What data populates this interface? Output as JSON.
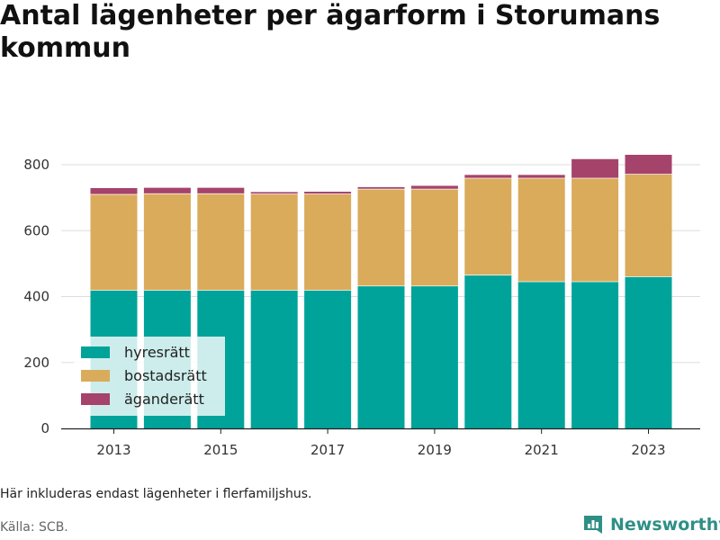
{
  "title": "Antal lägenheter per ägarform i Storumans kommun",
  "note": "Här inkluderas endast lägenheter i flerfamiljshus.",
  "source": "Källa: SCB.",
  "brand": "Newsworthy",
  "colors": {
    "hyresratt": "#00a39a",
    "bostadsratt": "#d9ab5b",
    "aganderatt": "#a5436b",
    "grid": "#dddddd",
    "brand": "#2f8f86"
  },
  "chart_data": {
    "type": "bar",
    "stacked": true,
    "categories": [
      2013,
      2014,
      2015,
      2016,
      2017,
      2018,
      2019,
      2020,
      2021,
      2022,
      2023
    ],
    "series": [
      {
        "name": "hyresrätt",
        "values": [
          420,
          420,
          420,
          420,
          420,
          433,
          433,
          466,
          446,
          446,
          461
        ]
      },
      {
        "name": "bostadsrätt",
        "values": [
          291,
          293,
          293,
          292,
          292,
          294,
          294,
          294,
          314,
          314,
          311
        ]
      },
      {
        "name": "äganderätt",
        "values": [
          18,
          17,
          17,
          5,
          6,
          5,
          9,
          9,
          9,
          57,
          58
        ]
      }
    ],
    "x_tick_labels": [
      "2013",
      "2015",
      "2017",
      "2019",
      "2021",
      "2023"
    ],
    "y_ticks": [
      0,
      200,
      400,
      600,
      800
    ],
    "ylim": [
      0,
      880
    ],
    "grid": true,
    "legend_position": "bottom-left"
  }
}
